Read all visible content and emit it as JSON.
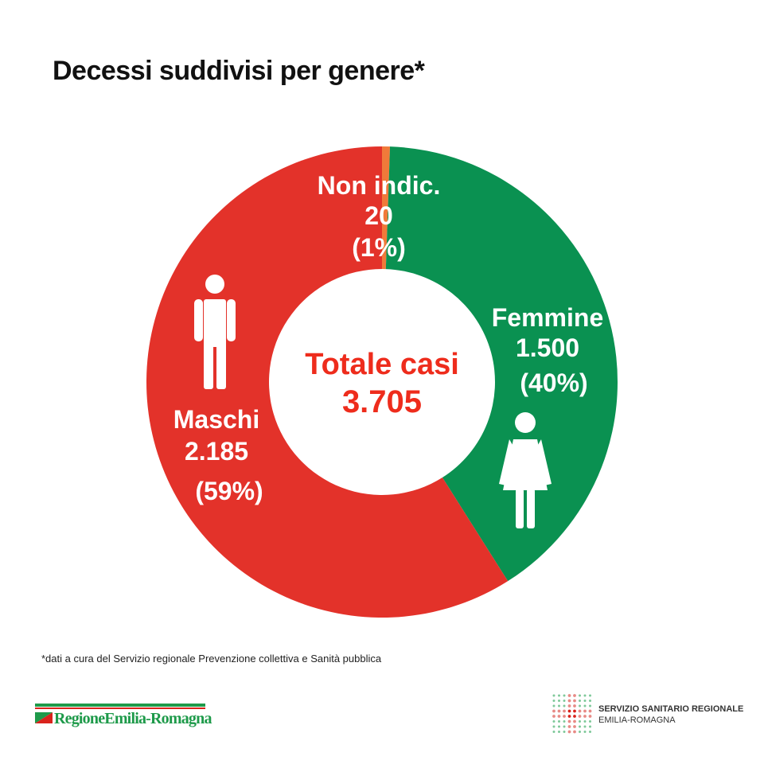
{
  "colors": {
    "maschi": "#e3322a",
    "femmine": "#0a9151",
    "non_indicato": "#f07a3a",
    "center_text": "#ee2c1c",
    "region_green": "#1e9a4a",
    "region_red": "#d9231c"
  },
  "chart_data": {
    "type": "pie",
    "title": "Decessi suddivisi per genere*",
    "start": "12-o-clock",
    "direction": "clockwise",
    "order": [
      "non_indicato",
      "femmine",
      "maschi"
    ],
    "slices": {
      "non_indicato": {
        "label": "Non indic.",
        "value_text": "20",
        "percent_text": "(1%)",
        "value": 20
      },
      "femmine": {
        "label": "Femmine",
        "value_text": "1.500",
        "percent_text": "(40%)",
        "value": 1500
      },
      "maschi": {
        "label": "Maschi",
        "value_text": "2.185",
        "percent_text": "(59%)",
        "value": 2185
      }
    },
    "center": {
      "label": "Totale casi",
      "value_text": "3.705"
    }
  },
  "footnote": "*dati a cura del Servizio regionale Prevenzione collettiva e Sanità pubblica",
  "logo_left": {
    "part1": "Regione",
    "part2": "Emilia-Romagna"
  },
  "logo_right": {
    "line1": "SERVIZIO SANITARIO REGIONALE",
    "line2": "EMILIA-ROMAGNA"
  }
}
